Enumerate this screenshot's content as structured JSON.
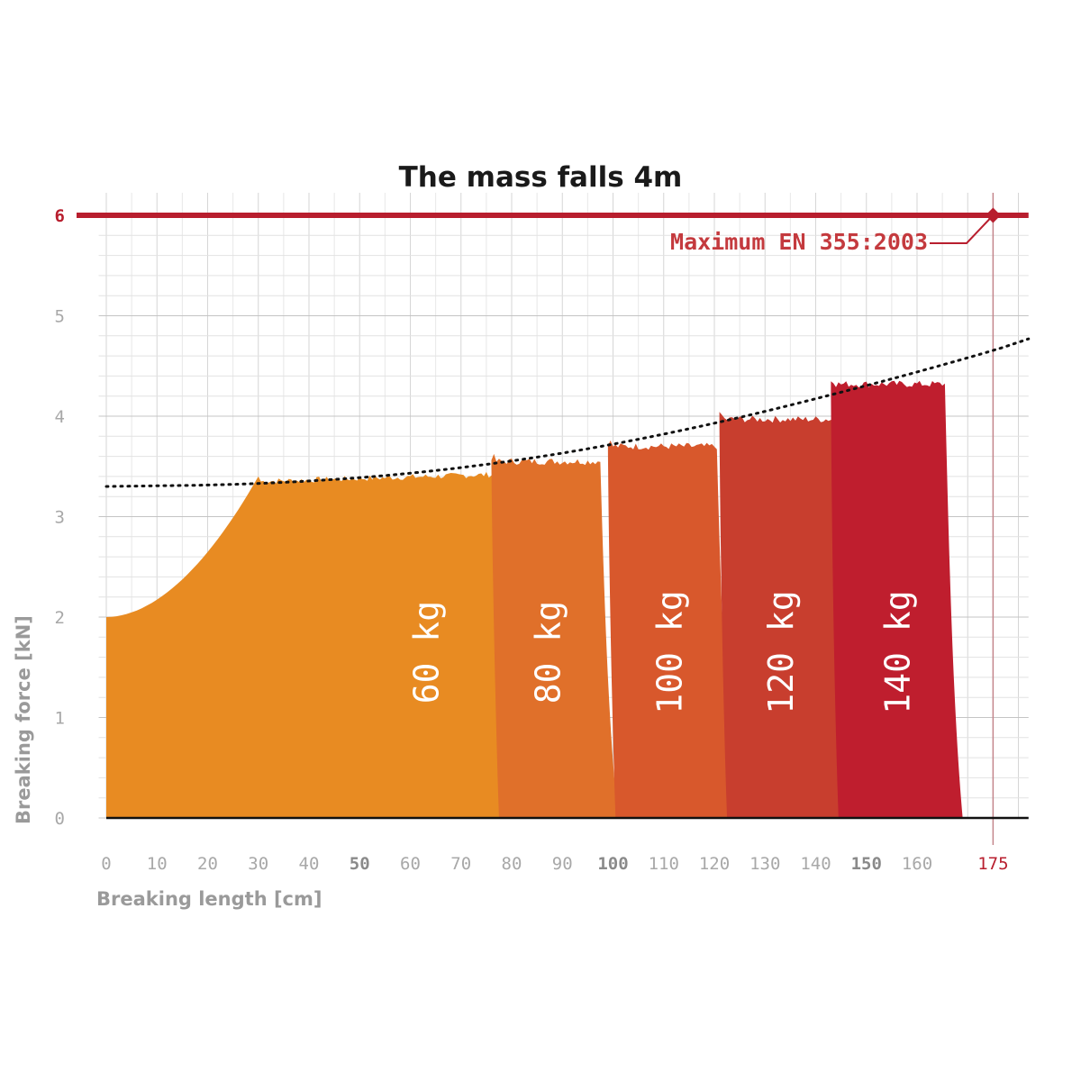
{
  "chart_data": {
    "type": "area",
    "title": "The mass falls 4m",
    "xlabel": "Breaking length [cm]",
    "ylabel": "Breaking force [kN]",
    "xlim": [
      0,
      182
    ],
    "ylim": [
      0,
      6
    ],
    "x_ticks": [
      "0",
      "10",
      "20",
      "30",
      "40",
      "50",
      "60",
      "70",
      "80",
      "90",
      "100",
      "110",
      "120",
      "130",
      "140",
      "150",
      "160",
      "175"
    ],
    "x_ticks_bold": [
      "50",
      "100",
      "150"
    ],
    "x_tick_highlight": "175",
    "y_ticks": [
      "0",
      "1",
      "2",
      "3",
      "4",
      "5",
      "6"
    ],
    "y_tick_highlight": "6",
    "grid": true,
    "series": [
      {
        "name": "60 kg",
        "color": "#e88b22",
        "x_end": 80,
        "force_kN": 3.35,
        "curve": [
          [
            0,
            2.0
          ],
          [
            5,
            2.08
          ],
          [
            10,
            2.25
          ],
          [
            15,
            2.5
          ],
          [
            20,
            2.8
          ],
          [
            25,
            3.1
          ],
          [
            30,
            3.4
          ],
          [
            32,
            3.36
          ],
          [
            40,
            3.33
          ],
          [
            50,
            3.35
          ],
          [
            60,
            3.38
          ],
          [
            70,
            3.4
          ],
          [
            76,
            3.42
          ]
        ]
      },
      {
        "name": "80 kg",
        "color": "#e0702a",
        "x_start": 76,
        "x_end": 101,
        "force_kN": 3.55
      },
      {
        "name": "100 kg",
        "color": "#d8582c",
        "x_start": 99,
        "x_end": 124,
        "force_kN": 3.7
      },
      {
        "name": "120 kg",
        "color": "#c83e2e",
        "x_start": 121,
        "x_end": 147,
        "force_kN": 3.97
      },
      {
        "name": "140 kg",
        "color": "#bf1e2e",
        "x_start": 143,
        "x_end": 169,
        "force_kN": 4.32
      }
    ],
    "trend_line": {
      "style": "dotted",
      "points": [
        [
          0,
          3.3
        ],
        [
          30,
          3.32
        ],
        [
          60,
          3.42
        ],
        [
          90,
          3.62
        ],
        [
          120,
          3.92
        ],
        [
          150,
          4.3
        ],
        [
          175,
          4.65
        ],
        [
          182,
          4.77
        ]
      ]
    },
    "reference_line": {
      "value": 6,
      "color": "#b81e2e",
      "label": "Maximum EN 355:2003",
      "marker_x": 175
    }
  }
}
